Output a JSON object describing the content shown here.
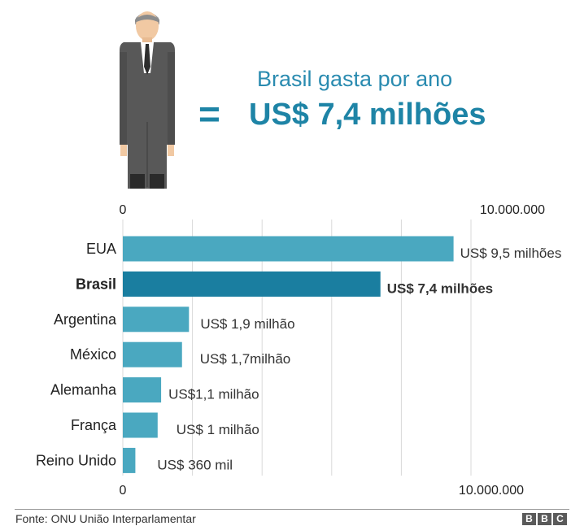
{
  "header": {
    "title": "Brasil gasta por ano",
    "equals": "=",
    "amount": "US$ 7,4 milhões"
  },
  "chart_data": {
    "type": "bar",
    "orientation": "horizontal",
    "title": "Brasil gasta por ano",
    "xlim": [
      0,
      10000000
    ],
    "x_tick_labels": [
      "0",
      "10.000.000"
    ],
    "grid": true,
    "highlight": "Brasil",
    "categories": [
      "EUA",
      "Brasil",
      "Argentina",
      "México",
      "Alemanha",
      "França",
      "Reino Unido"
    ],
    "values": [
      9500000,
      7400000,
      1900000,
      1700000,
      1100000,
      1000000,
      360000
    ],
    "data_labels": [
      "US$ 9,5 milhões",
      "US$ 7,4 milhões",
      "US$ 1,9 milhão",
      "US$ 1,7milhão",
      "US$1,1 milhão",
      "US$ 1 milhão",
      "US$ 360 mil"
    ],
    "colors": {
      "bar": "#4aa8c0",
      "highlight": "#1a7ea0",
      "grid": "#d9d9d9"
    }
  },
  "footer": {
    "source": "Fonte: ONU União Interparlamentar",
    "logo_letters": [
      "B",
      "B",
      "C"
    ]
  }
}
